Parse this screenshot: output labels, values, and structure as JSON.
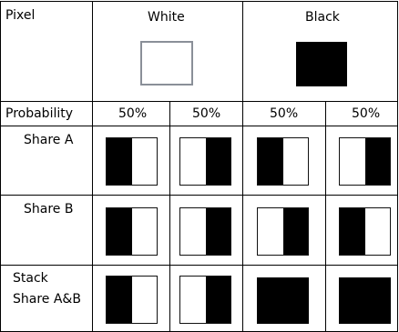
{
  "header": {
    "pixel_label": "Pixel",
    "white_label": "White",
    "black_label": "Black"
  },
  "probability": {
    "label": "Probability",
    "values": [
      "50%",
      "50%",
      "50%",
      "50%"
    ]
  },
  "rows": {
    "share_a": "Share A",
    "share_b": "Share B",
    "stack_line1": "Stack",
    "stack_line2": "Share A&B"
  },
  "patterns": {
    "share_a": [
      [
        "black",
        "white"
      ],
      [
        "white",
        "black"
      ],
      [
        "black",
        "white"
      ],
      [
        "white",
        "black"
      ]
    ],
    "share_b": [
      [
        "black",
        "white"
      ],
      [
        "white",
        "black"
      ],
      [
        "white",
        "black"
      ],
      [
        "black",
        "white"
      ]
    ],
    "stack": [
      [
        "black",
        "white"
      ],
      [
        "white",
        "black"
      ],
      [
        "black",
        "black"
      ],
      [
        "black",
        "black"
      ]
    ]
  },
  "colors": {
    "black": "#000000",
    "white": "#ffffff",
    "border": "#000000"
  }
}
